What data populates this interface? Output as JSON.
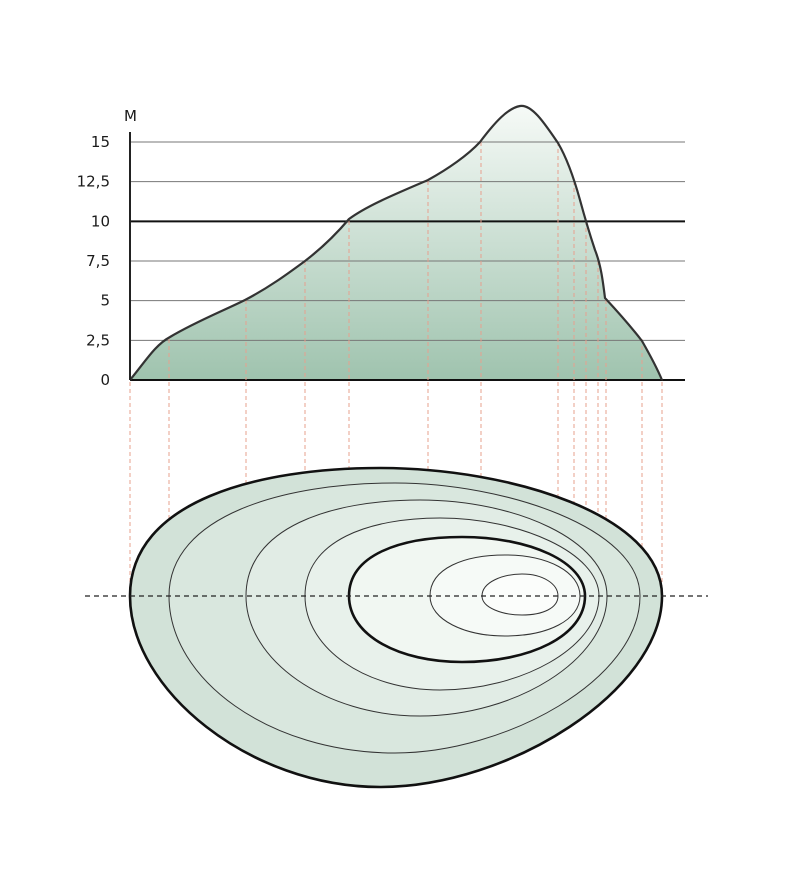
{
  "diagram": {
    "unit_label": "М",
    "y_ticks": [
      {
        "value": 0,
        "label": "0"
      },
      {
        "value": 2.5,
        "label": "2,5"
      },
      {
        "value": 5,
        "label": "5"
      },
      {
        "value": 7.5,
        "label": "7,5"
      },
      {
        "value": 10,
        "label": "10"
      },
      {
        "value": 12.5,
        "label": "12,5"
      },
      {
        "value": 15,
        "label": "15"
      }
    ],
    "emphasized_levels": [
      0,
      10
    ],
    "contour_levels": [
      0,
      2.5,
      5,
      7.5,
      10,
      12.5,
      15
    ],
    "peak_height": 16.5,
    "colors": {
      "profile_fill_top": "#f6faf7",
      "profile_fill_bottom": "#9fc3ae",
      "outline": "#333333",
      "projection_lines": "#e7a08e",
      "section_line": "#222222",
      "contour_fill_outer": "#d2e2d8",
      "contour_fill_inner": "#fbfdfb"
    }
  }
}
